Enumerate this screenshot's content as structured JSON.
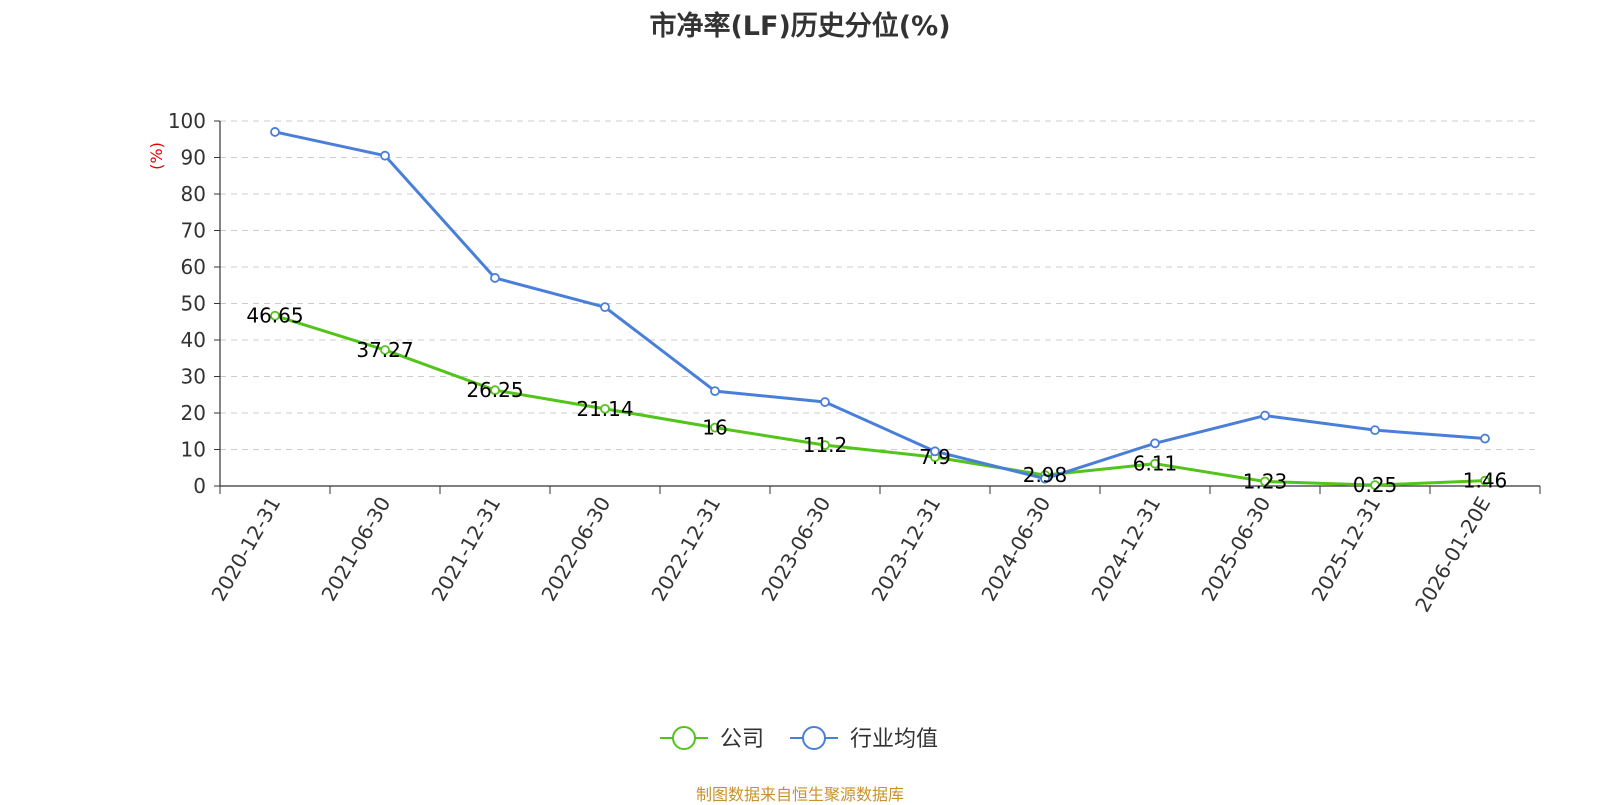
{
  "title": "市净率(LF)历史分位(%)",
  "source": "制图数据来自恒生聚源数据库",
  "colors": {
    "company": "#52c41a",
    "industry": "#4a7fd9",
    "grid": "#cccccc",
    "axis": "#333333",
    "unit": "#e60000",
    "source": "#c8922a"
  },
  "chart_data": {
    "type": "line",
    "title": "市净率(LF)历史分位(%)",
    "xlabel": "",
    "ylabel": "(%)",
    "ylim": [
      0,
      100
    ],
    "yticks": [
      0,
      10,
      20,
      30,
      40,
      50,
      60,
      70,
      80,
      90,
      100
    ],
    "grid": true,
    "legend_position": "bottom-center",
    "categories": [
      "2020-12-31",
      "2021-06-30",
      "2021-12-31",
      "2022-06-30",
      "2022-12-31",
      "2023-06-30",
      "2023-12-31",
      "2024-06-30",
      "2024-12-31",
      "2025-06-30",
      "2025-12-31",
      "2026-01-20E"
    ],
    "series": [
      {
        "name": "公司",
        "color": "#52c41a",
        "labeled": true,
        "values": [
          46.65,
          37.27,
          26.25,
          21.14,
          16,
          11.2,
          7.9,
          2.98,
          6.11,
          1.23,
          0.25,
          1.46
        ]
      },
      {
        "name": "行业均值",
        "color": "#4a7fd9",
        "labeled": false,
        "values": [
          97,
          90.5,
          57,
          49,
          26,
          23,
          9.5,
          2,
          11.7,
          19.3,
          15.3,
          13
        ]
      }
    ]
  }
}
